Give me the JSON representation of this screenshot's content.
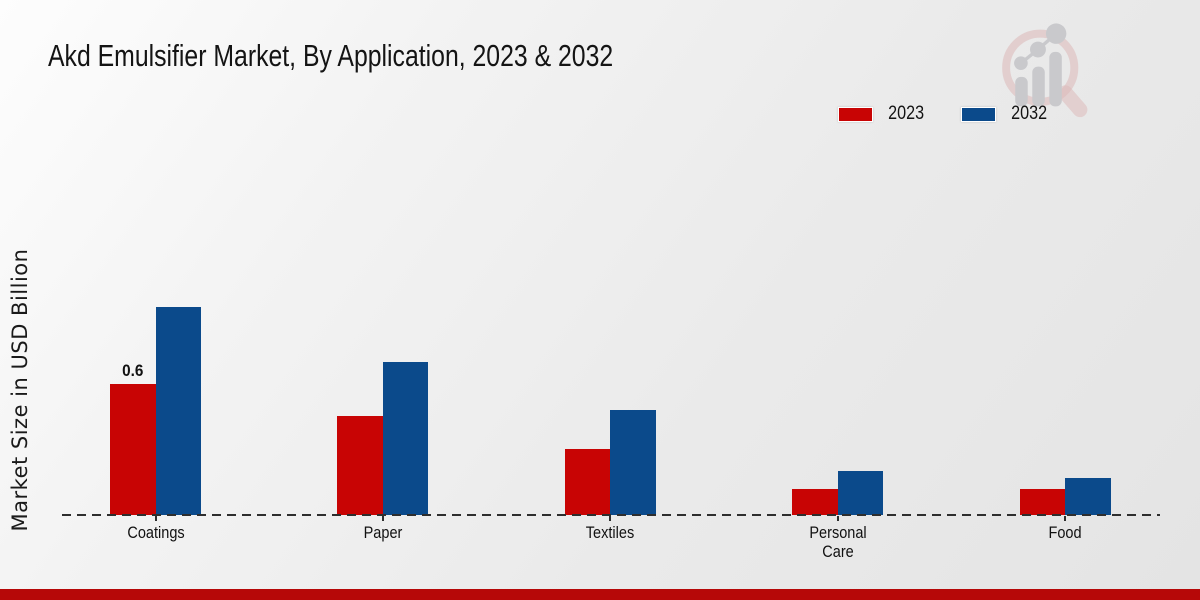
{
  "header": {
    "title": "Akd Emulsifier Market, By Application, 2023 & 2032"
  },
  "legend": {
    "items": [
      {
        "label": "2023",
        "color": "#c80404"
      },
      {
        "label": "2032",
        "color": "#0b4a8b"
      }
    ]
  },
  "chart_data": {
    "type": "bar",
    "title": "Akd Emulsifier Market, By Application, 2023 & 2032",
    "xlabel": "",
    "ylabel": "Market Size in USD Billion",
    "categories": [
      "Coatings",
      "Paper",
      "Textiles",
      "Personal Care",
      "Food"
    ],
    "series": [
      {
        "name": "2023",
        "color": "#c80404",
        "values": [
          0.6,
          0.45,
          0.3,
          0.12,
          0.12
        ]
      },
      {
        "name": "2032",
        "color": "#0b4a8b",
        "values": [
          0.95,
          0.7,
          0.48,
          0.2,
          0.17
        ]
      }
    ],
    "value_labels": [
      {
        "series_index": 0,
        "category_index": 0,
        "text": "0.6"
      }
    ],
    "grid": false,
    "y_axis_ticks_visible": false,
    "baseline_style": "dashed",
    "legend_position": "upper-right"
  },
  "icons": {
    "watermark": "magnifier-bar-chart-logo"
  },
  "footer": {
    "bar_color": "#b60808"
  }
}
